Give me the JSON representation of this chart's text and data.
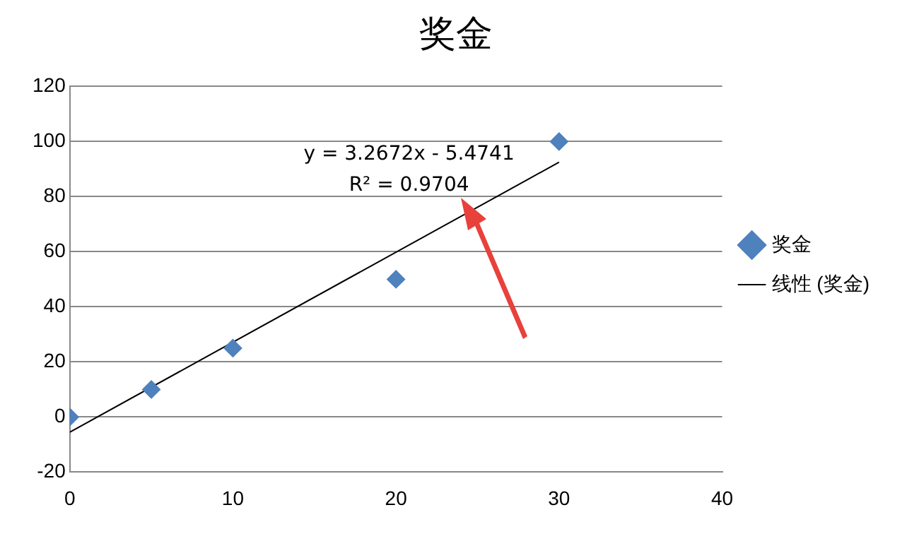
{
  "chart_data": {
    "type": "scatter",
    "title": "奖金",
    "series": [
      {
        "name": "奖金",
        "color": "#4f81bd",
        "marker": "diamond",
        "x": [
          0,
          5,
          10,
          20,
          30
        ],
        "values": [
          0,
          10,
          25,
          50,
          100
        ]
      },
      {
        "name": "线性 (奖金)",
        "type": "line",
        "color": "#000000",
        "marker": "none",
        "x": [
          0,
          30
        ],
        "values": [
          -5.5,
          92.5
        ]
      }
    ],
    "xlim": [
      0,
      40
    ],
    "xticks": [
      0,
      10,
      20,
      30,
      40
    ],
    "ylim": [
      -20,
      120
    ],
    "yticks": [
      -20,
      0,
      20,
      40,
      60,
      80,
      100,
      120
    ],
    "grid": "y",
    "legend": "right",
    "annotations": [
      "y = 3.2672x - 5.4741",
      "R² = 0.9704"
    ]
  }
}
